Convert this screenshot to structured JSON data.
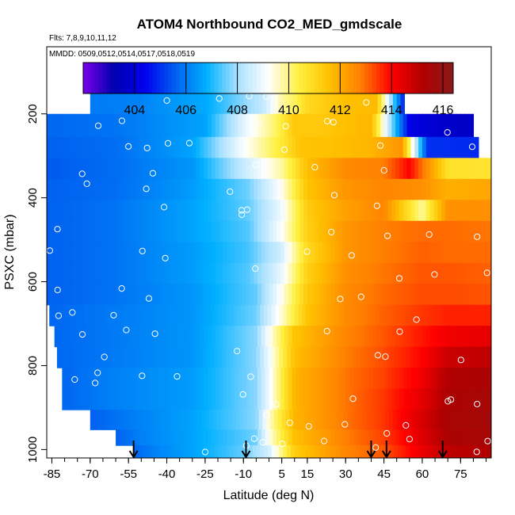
{
  "chart_data": {
    "type": "heatmap",
    "title": "ATOM4 Northbound CO2_MED_gmdscale",
    "subtitle_flights": "Flts: 7,8,9,10,11,12",
    "subtitle_dates": "MMDD: 0509,0512,0514,0517,0518,0519",
    "xlabel": "Latitude (deg N)",
    "ylabel": "PSXC (mbar)",
    "xlim": [
      -87,
      87
    ],
    "ylim": [
      1020,
      40
    ],
    "x_ticks": [
      -85,
      -70,
      -55,
      -40,
      -25,
      -10,
      5,
      15,
      30,
      45,
      60,
      75
    ],
    "y_ticks": [
      200,
      400,
      600,
      800,
      1000
    ],
    "colorbar": {
      "min": 402.0,
      "max": 416.4,
      "ticks": [
        404,
        406,
        408,
        410,
        412,
        414,
        416
      ],
      "colors": [
        "#7b00e8",
        "#0000b0",
        "#0000ee",
        "#0060f0",
        "#00b0ff",
        "#a8e0ff",
        "#ffffff",
        "#fff040",
        "#ffc000",
        "#ff8000",
        "#ff0000",
        "#b00000",
        "#8a1a1a"
      ]
    },
    "profile_markers_lat": [
      -53,
      -9,
      40,
      46,
      68
    ],
    "ascii_art_unused": "",
    "layers": [
      {
        "p": 170,
        "lat": [
          -70,
          -52,
          -25,
          -15,
          -2,
          5,
          10,
          15,
          30,
          42,
          53
        ],
        "co2": [
          406.0,
          406.1,
          406.7,
          407.4,
          408.4,
          409.8,
          410.2,
          411.0,
          411.6,
          411.7,
          404.6
        ]
      },
      {
        "p": 230,
        "lat": [
          -87,
          -60,
          -25,
          -10,
          3,
          10,
          20,
          40,
          55,
          65,
          80
        ],
        "co2": [
          405.7,
          405.9,
          406.6,
          408.8,
          410.2,
          411.4,
          411.4,
          411.8,
          404.2,
          403.8,
          403.6
        ]
      },
      {
        "p": 280,
        "lat": [
          -87,
          -60,
          -30,
          -12,
          5,
          12,
          25,
          40,
          52,
          62,
          82
        ],
        "co2": [
          405.6,
          405.8,
          406.6,
          408.9,
          410.6,
          411.5,
          411.6,
          411.8,
          412.4,
          405.0,
          404.9
        ]
      },
      {
        "p": 330,
        "lat": [
          -87,
          -60,
          -30,
          -10,
          5,
          15,
          30,
          45,
          55,
          70,
          87
        ],
        "co2": [
          405.5,
          405.8,
          406.4,
          408.4,
          409.8,
          411.6,
          412.6,
          412.8,
          414.0,
          410.8,
          410.7
        ]
      },
      {
        "p": 380,
        "lat": [
          -87,
          -60,
          -30,
          -8,
          5,
          15,
          30,
          45,
          60,
          70,
          87
        ],
        "co2": [
          405.6,
          405.8,
          406.5,
          407.6,
          409.3,
          411.5,
          412.4,
          412.7,
          412.5,
          411.9,
          412.1
        ]
      },
      {
        "p": 430,
        "lat": [
          -87,
          -60,
          -30,
          -8,
          5,
          15,
          30,
          45,
          60,
          70,
          87
        ],
        "co2": [
          405.6,
          405.9,
          406.6,
          407.5,
          409.0,
          411.3,
          412.2,
          412.7,
          409.8,
          412.5,
          412.5
        ]
      },
      {
        "p": 480,
        "lat": [
          -87,
          -60,
          -30,
          -8,
          5,
          15,
          30,
          45,
          60,
          70,
          87
        ],
        "co2": [
          405.6,
          405.9,
          406.6,
          407.4,
          409.2,
          411.2,
          412.4,
          412.8,
          413.0,
          413.0,
          412.9
        ]
      },
      {
        "p": 530,
        "lat": [
          -87,
          -60,
          -30,
          -8,
          5,
          15,
          30,
          45,
          60,
          70,
          87
        ],
        "co2": [
          405.6,
          405.9,
          406.5,
          407.3,
          408.6,
          411.0,
          412.4,
          412.8,
          413.1,
          413.0,
          413.0
        ]
      },
      {
        "p": 580,
        "lat": [
          -87,
          -60,
          -30,
          -8,
          5,
          15,
          30,
          45,
          60,
          70,
          87
        ],
        "co2": [
          405.6,
          405.9,
          406.5,
          407.4,
          408.9,
          411.2,
          412.5,
          412.9,
          413.2,
          413.2,
          413.1
        ]
      },
      {
        "p": 630,
        "lat": [
          -87,
          -60,
          -30,
          -5,
          5,
          15,
          30,
          45,
          60,
          70,
          87
        ],
        "co2": [
          405.6,
          405.9,
          406.4,
          407.5,
          409.3,
          411.4,
          412.6,
          413.0,
          413.3,
          413.3,
          413.2
        ]
      },
      {
        "p": 680,
        "lat": [
          -86,
          -60,
          -30,
          -5,
          5,
          15,
          30,
          45,
          60,
          70,
          87
        ],
        "co2": [
          405.7,
          406.0,
          406.4,
          407.6,
          409.5,
          411.5,
          412.6,
          413.1,
          413.5,
          413.7,
          413.7
        ]
      },
      {
        "p": 730,
        "lat": [
          -84,
          -60,
          -30,
          -5,
          0,
          10,
          30,
          45,
          60,
          70,
          87
        ],
        "co2": [
          405.7,
          406.0,
          406.4,
          407.8,
          409.2,
          411.5,
          412.7,
          413.2,
          413.8,
          414.2,
          414.4
        ]
      },
      {
        "p": 780,
        "lat": [
          -83,
          -60,
          -30,
          -5,
          0,
          10,
          30,
          45,
          60,
          70,
          87
        ],
        "co2": [
          405.7,
          406.0,
          406.4,
          407.8,
          409.0,
          411.6,
          412.8,
          413.3,
          414.0,
          414.8,
          415.0
        ]
      },
      {
        "p": 830,
        "lat": [
          -81,
          -60,
          -30,
          -5,
          0,
          10,
          30,
          45,
          60,
          70,
          87
        ],
        "co2": [
          405.7,
          406.1,
          406.5,
          407.8,
          409.0,
          411.8,
          412.9,
          413.4,
          414.2,
          415.2,
          415.4
        ]
      },
      {
        "p": 880,
        "lat": [
          -81,
          -60,
          -30,
          -5,
          0,
          10,
          30,
          45,
          60,
          70,
          87
        ],
        "co2": [
          405.7,
          406.1,
          406.5,
          407.8,
          409.0,
          411.8,
          412.9,
          413.5,
          414.4,
          415.3,
          415.5
        ]
      },
      {
        "p": 930,
        "lat": [
          -70,
          -55,
          -30,
          -5,
          0,
          10,
          30,
          45,
          60,
          70,
          87
        ],
        "co2": [
          405.6,
          406.0,
          406.6,
          407.8,
          409.5,
          411.8,
          412.9,
          413.5,
          414.6,
          415.4,
          415.6
        ]
      },
      {
        "p": 975,
        "lat": [
          -60,
          -50,
          -30,
          -5,
          0,
          10,
          30,
          45,
          60,
          70,
          87
        ],
        "co2": [
          405.6,
          406.1,
          406.6,
          407.6,
          409.3,
          411.6,
          412.8,
          413.4,
          414.5,
          415.3,
          415.5
        ]
      },
      {
        "p": 1005,
        "lat": [
          -53,
          -45,
          -30,
          -10,
          0,
          10,
          30,
          45,
          60,
          70,
          87
        ],
        "co2": [
          405.7,
          406.1,
          406.6,
          407.5,
          408.6,
          411.3,
          412.7,
          413.2,
          414.3,
          415.0,
          415.2
        ]
      }
    ]
  }
}
